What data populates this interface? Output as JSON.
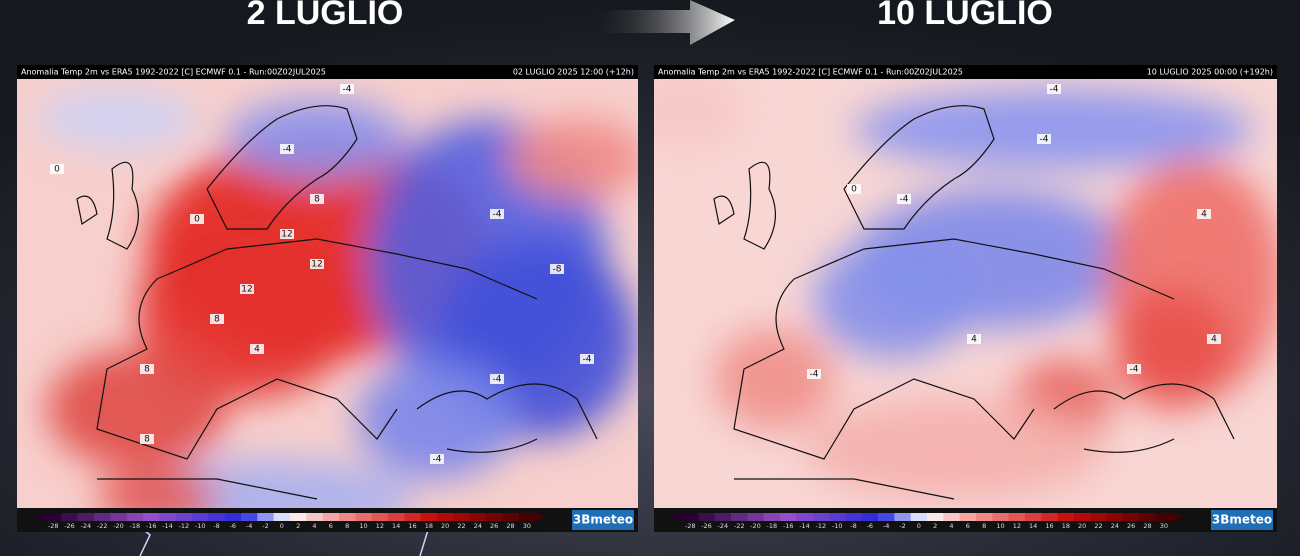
{
  "title_left": "2 LUGLIO",
  "title_right": "10 LUGLIO",
  "maps": [
    {
      "header_left": "Anomalia Temp 2m vs ERA5 1992-2022 [C] ECMWF 0.1 - Run:00Z02JUL2025",
      "header_right": "02 LUGLIO 2025 12:00 (+12h)",
      "contour_labels": [
        0,
        0,
        -4,
        -4,
        8,
        12,
        12,
        12,
        8,
        8,
        -4,
        -8,
        -4,
        -4,
        8,
        4,
        -4
      ],
      "logo": "3Bmeteo"
    },
    {
      "header_left": "Anomalia Temp 2m vs ERA5 1992-2022 [C] ECMWF 0.1 - Run:00Z02JUL2025",
      "header_right": "10 LUGLIO 2025 00:00 (+192h)",
      "contour_labels": [
        -4,
        -4,
        -4,
        4,
        4,
        -4,
        0,
        -4,
        4
      ],
      "logo": "3Bmeteo"
    }
  ],
  "colorbar": {
    "ticks": [
      -28,
      -26,
      -24,
      -22,
      -20,
      -18,
      -16,
      -14,
      -12,
      -10,
      -8,
      -6,
      -4,
      -2,
      0,
      2,
      4,
      6,
      8,
      10,
      12,
      14,
      16,
      18,
      20,
      22,
      24,
      26,
      28,
      30
    ]
  }
}
